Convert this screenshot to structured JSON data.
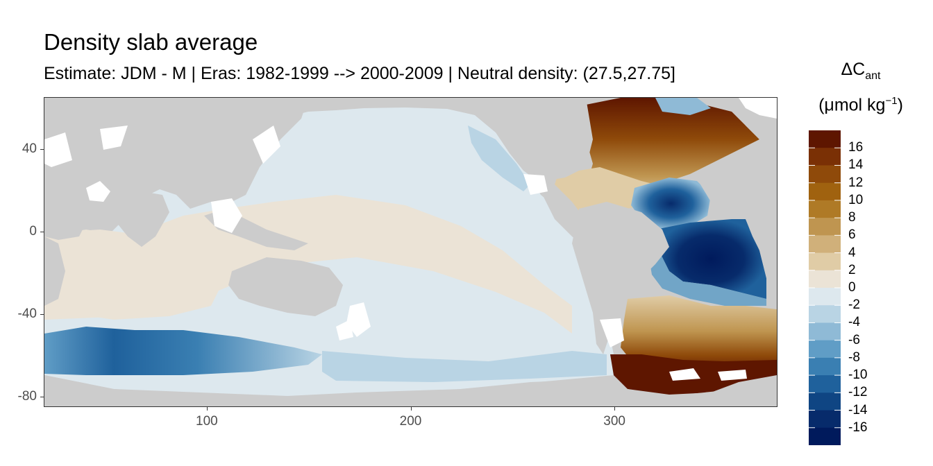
{
  "title": "Density slab average",
  "subtitle": "Estimate: JDM - M | Eras: 1982-1999 --> 2000-2009 | Neutral density: (27.5,27.75]",
  "axes": {
    "x_ticks": [
      "100",
      "200",
      "300"
    ],
    "y_ticks": [
      "40",
      "0",
      "-40",
      "-80"
    ],
    "x_values": [
      100,
      200,
      300
    ],
    "y_values": [
      40,
      0,
      -40,
      -80
    ],
    "xlim": [
      20,
      380
    ],
    "ylim": [
      -85,
      65
    ]
  },
  "legend": {
    "title_main": "ΔC",
    "title_sub": "ant",
    "units_prefix": "(μmol kg",
    "units_sup": "−1",
    "units_suffix": ")",
    "labels": [
      "16",
      "14",
      "12",
      "10",
      "8",
      "6",
      "4",
      "2",
      "0",
      "-2",
      "-4",
      "-6",
      "-8",
      "-10",
      "-12",
      "-14",
      "-16"
    ],
    "colors": [
      "#5e1600",
      "#7a3005",
      "#8f4a0a",
      "#a0620f",
      "#af7a26",
      "#bf9550",
      "#d0b07a",
      "#e0cca6",
      "#ebe3d6",
      "#dde8ee",
      "#b9d4e4",
      "#8fbad6",
      "#609dc6",
      "#3a7fb2",
      "#1f619c",
      "#0f4583",
      "#072b6b",
      "#001a5c"
    ]
  },
  "colors": {
    "land": "#cccccc",
    "nodata": "#ffffff",
    "frame": "#333333"
  }
}
